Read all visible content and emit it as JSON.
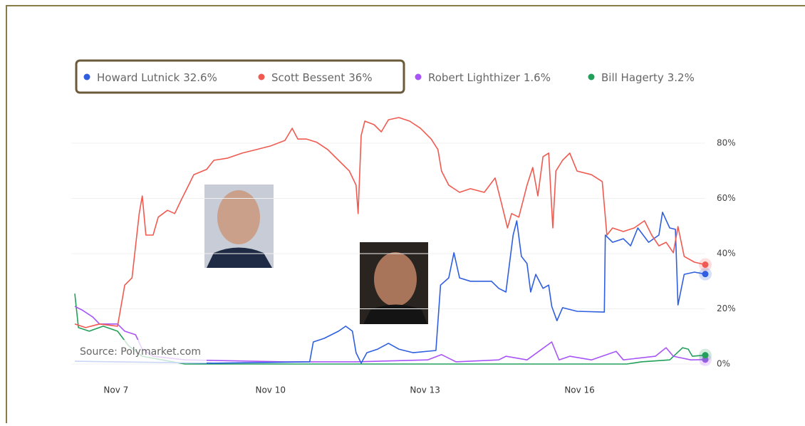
{
  "chart_data": {
    "type": "line",
    "source": "Source: Polymarket.com",
    "xlim": [
      6.2,
      18.44
    ],
    "xticks": [
      {
        "value": 7,
        "label": "Nov 7"
      },
      {
        "value": 10,
        "label": "Nov 10"
      },
      {
        "value": 13,
        "label": "Nov 13"
      },
      {
        "value": 16,
        "label": "Nov 16"
      }
    ],
    "ylim": [
      -2,
      92
    ],
    "yticks": [
      {
        "value": 0,
        "label": "0%"
      },
      {
        "value": 20,
        "label": "20%"
      },
      {
        "value": 40,
        "label": "40%"
      },
      {
        "value": 60,
        "label": "60%"
      },
      {
        "value": 80,
        "label": "80%"
      }
    ],
    "grid": true,
    "series": [
      {
        "name": "Howard Lutnick",
        "current": 32.6,
        "current_label": "32.6%",
        "color": "#2f5fe0",
        "x": [
          6.2,
          8.9,
          10.76,
          10.83,
          11.04,
          11.32,
          11.46,
          11.59,
          11.66,
          11.76,
          11.87,
          12.08,
          12.29,
          12.49,
          12.77,
          13.21,
          13.3,
          13.46,
          13.56,
          13.67,
          13.88,
          14.29,
          14.43,
          14.57,
          14.64,
          14.71,
          14.78,
          14.87,
          14.98,
          15.05,
          15.15,
          15.29,
          15.4,
          15.46,
          15.56,
          15.67,
          15.95,
          16.48,
          16.5,
          16.64,
          16.85,
          16.99,
          17.13,
          17.34,
          17.54,
          17.61,
          17.75,
          17.86,
          17.91,
          18.03,
          18.23,
          18.44
        ],
        "values": [
          1.0,
          0.3,
          0.8,
          8.0,
          9.3,
          11.9,
          13.7,
          11.9,
          4.1,
          0.3,
          4.1,
          5.4,
          7.5,
          5.4,
          4.1,
          4.9,
          28.6,
          31.2,
          40.3,
          31.2,
          30.0,
          30.0,
          27.4,
          26.1,
          36.4,
          46.7,
          51.9,
          39.0,
          36.4,
          26.1,
          32.5,
          27.4,
          28.6,
          20.9,
          15.7,
          20.4,
          19.1,
          18.8,
          46.7,
          44.1,
          45.4,
          42.8,
          49.3,
          44.1,
          46.7,
          55.0,
          49.3,
          48.8,
          21.4,
          32.5,
          33.3,
          32.6
        ]
      },
      {
        "name": "Scott Bessent",
        "current": 36,
        "current_label": "36%",
        "color": "#f05a50",
        "x": [
          6.2,
          6.41,
          6.68,
          7.03,
          7.17,
          7.31,
          7.45,
          7.51,
          7.58,
          7.72,
          7.82,
          8.0,
          8.14,
          8.27,
          8.41,
          8.51,
          8.76,
          8.9,
          9.17,
          9.45,
          9.73,
          10.0,
          10.28,
          10.42,
          10.53,
          10.7,
          10.9,
          11.11,
          11.32,
          11.53,
          11.66,
          11.7,
          11.76,
          11.83,
          12.01,
          12.15,
          12.29,
          12.49,
          12.7,
          12.91,
          13.12,
          13.25,
          13.32,
          13.46,
          13.67,
          13.88,
          14.15,
          14.36,
          14.5,
          14.6,
          14.68,
          14.82,
          14.98,
          15.09,
          15.19,
          15.29,
          15.4,
          15.48,
          15.54,
          15.67,
          15.81,
          15.95,
          16.23,
          16.44,
          16.53,
          16.64,
          16.85,
          17.06,
          17.26,
          17.4,
          17.54,
          17.68,
          17.82,
          17.91,
          18.03,
          18.23,
          18.44
        ],
        "values": [
          14.5,
          13.2,
          14.5,
          13.7,
          28.6,
          31.2,
          54.5,
          60.9,
          46.7,
          46.7,
          53.2,
          55.7,
          54.5,
          59.6,
          64.8,
          68.6,
          70.5,
          73.8,
          74.6,
          76.4,
          77.7,
          79.0,
          81.0,
          85.4,
          81.5,
          81.5,
          80.3,
          77.7,
          73.8,
          69.9,
          64.8,
          54.5,
          82.8,
          88.0,
          86.7,
          84.1,
          88.5,
          89.3,
          88.0,
          85.4,
          81.5,
          77.7,
          69.9,
          64.8,
          62.2,
          63.5,
          62.2,
          67.4,
          57.0,
          49.3,
          54.5,
          53.2,
          64.8,
          71.2,
          60.9,
          75.1,
          76.4,
          49.3,
          69.9,
          73.8,
          76.4,
          69.9,
          68.6,
          66.1,
          46.7,
          49.3,
          48.0,
          49.3,
          51.9,
          46.7,
          42.8,
          44.1,
          40.3,
          49.8,
          39.0,
          36.9,
          36
        ]
      },
      {
        "name": "Robert Lighthizer",
        "current": 1.6,
        "current_label": "1.6%",
        "color": "#a855f7",
        "x": [
          6.2,
          6.34,
          6.55,
          6.68,
          7.03,
          7.17,
          7.38,
          7.51,
          7.72,
          8.34,
          10.28,
          11.66,
          13.05,
          13.32,
          13.6,
          14.43,
          14.57,
          14.98,
          15.46,
          15.6,
          15.81,
          16.23,
          16.71,
          16.85,
          17.47,
          17.68,
          17.82,
          18.16,
          18.44
        ],
        "values": [
          20.9,
          19.6,
          17.0,
          14.5,
          14.5,
          11.9,
          10.6,
          5.4,
          2.8,
          1.5,
          0.8,
          0.8,
          1.5,
          3.4,
          0.8,
          1.5,
          2.8,
          1.5,
          8.0,
          1.5,
          2.8,
          1.5,
          4.6,
          1.5,
          2.8,
          5.9,
          2.8,
          1.5,
          1.6
        ]
      },
      {
        "name": "Bill Hagerty",
        "current": 3.2,
        "current_label": "3.2%",
        "color": "#22a05a",
        "x": [
          6.2,
          6.27,
          6.48,
          6.75,
          7.03,
          7.24,
          7.51,
          8.34,
          10.28,
          13.05,
          14.43,
          16.92,
          17.2,
          17.75,
          18.0,
          18.11,
          18.19,
          18.44
        ],
        "values": [
          25.5,
          13.2,
          11.9,
          13.7,
          11.9,
          6.7,
          2.8,
          0,
          0,
          0,
          0,
          0,
          0.8,
          1.5,
          5.9,
          5.4,
          2.8,
          3.2
        ]
      }
    ]
  }
}
